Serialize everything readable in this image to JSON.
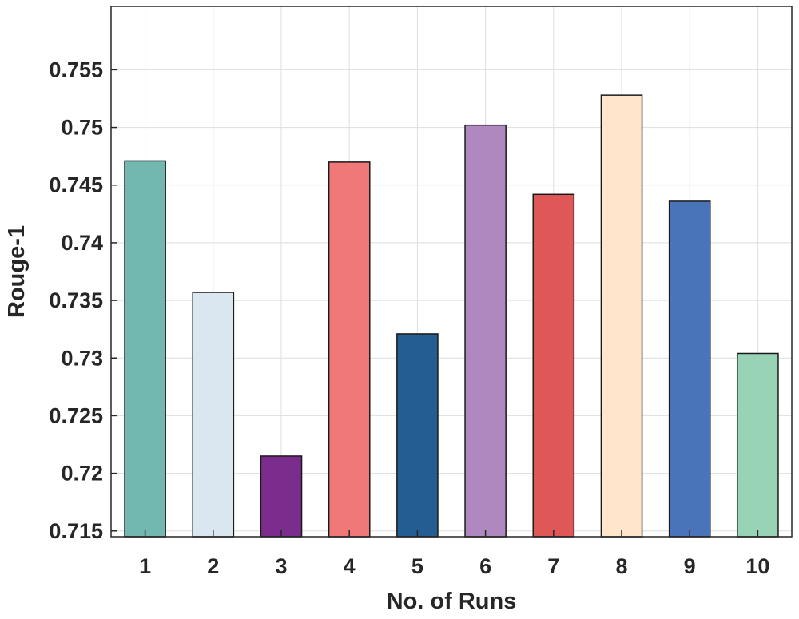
{
  "chart_data": {
    "type": "bar",
    "title": "",
    "xlabel": "No. of Runs",
    "ylabel": "Rouge-1",
    "categories": [
      "1",
      "2",
      "3",
      "4",
      "5",
      "6",
      "7",
      "8",
      "9",
      "10"
    ],
    "values": [
      0.7471,
      0.7357,
      0.7215,
      0.747,
      0.7321,
      0.7502,
      0.7442,
      0.7528,
      0.7436,
      0.7304
    ],
    "colors": [
      "#72b8b0",
      "#dae7f0",
      "#7b2d8e",
      "#f07878",
      "#245d91",
      "#ae88bf",
      "#e05757",
      "#fee5cb",
      "#4a74ba",
      "#98d3b6"
    ],
    "ylim": [
      0.7145,
      0.7605
    ],
    "yticks": [
      0.715,
      0.72,
      0.725,
      0.73,
      0.735,
      0.74,
      0.745,
      0.75,
      0.755
    ],
    "ytick_labels": [
      "0.715",
      "0.72",
      "0.725",
      "0.73",
      "0.735",
      "0.74",
      "0.745",
      "0.75",
      "0.755"
    ],
    "grid": true,
    "legend": "none"
  }
}
